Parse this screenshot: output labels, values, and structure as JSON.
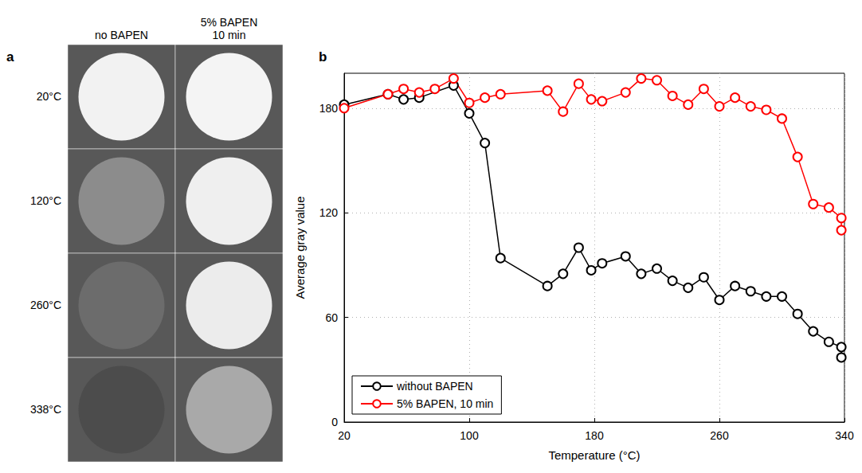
{
  "panel_a": {
    "panel_label": "a",
    "columns": [
      "no BAPEN",
      "5% BAPEN 10 min"
    ],
    "rows": [
      "20°C",
      "120°C",
      "260°C",
      "338°C"
    ]
  },
  "chart_data": {
    "panel_label": "b",
    "type": "line",
    "x_label": "Temperature (°C)",
    "y_label": "Average gray value",
    "xlim": [
      20,
      340
    ],
    "xticks": [
      20,
      100,
      180,
      260,
      340
    ],
    "ylim": [
      0,
      200
    ],
    "yticks": [
      0,
      60,
      120,
      180
    ],
    "grid": true,
    "legend": "lower left",
    "marker": "circle",
    "series": [
      {
        "name": "without BAPEN",
        "color": "#000000",
        "x": [
          20,
          48,
          58,
          68,
          90,
          100,
          110,
          120,
          150,
          160,
          170,
          178,
          185,
          200,
          210,
          220,
          230,
          240,
          250,
          260,
          270,
          280,
          290,
          300,
          310,
          320,
          330,
          338,
          338
        ],
        "values": [
          182,
          188,
          185,
          186,
          193,
          177,
          160,
          94,
          78,
          85,
          100,
          87,
          91,
          95,
          85,
          88,
          81,
          77,
          83,
          70,
          78,
          75,
          72,
          72,
          62,
          52,
          46,
          43,
          37
        ]
      },
      {
        "name": "5% BAPEN, 10 min",
        "color": "#ff0000",
        "x": [
          20,
          48,
          58,
          68,
          78,
          90,
          100,
          110,
          120,
          150,
          160,
          170,
          178,
          185,
          200,
          210,
          220,
          230,
          240,
          250,
          260,
          270,
          280,
          290,
          300,
          310,
          320,
          330,
          338,
          338
        ],
        "values": [
          180,
          188,
          191,
          189,
          191,
          197,
          183,
          186,
          188,
          190,
          178,
          194,
          185,
          184,
          189,
          197,
          196,
          187,
          182,
          191,
          181,
          186,
          181,
          179,
          174,
          152,
          125,
          123,
          117,
          110
        ]
      }
    ]
  }
}
